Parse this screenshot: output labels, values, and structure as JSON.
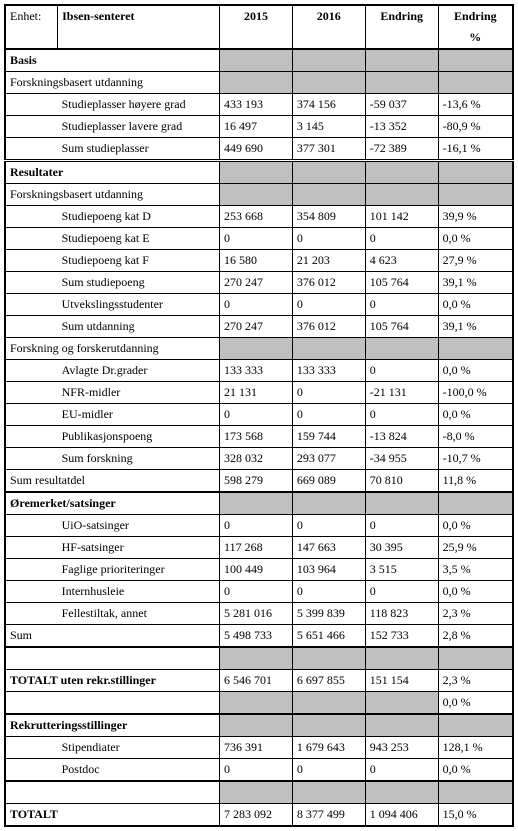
{
  "colors": {
    "shade": "#c0c0c0",
    "border": "#000000",
    "text": "#000000",
    "bg": "#ffffff"
  },
  "header": {
    "enhet_label": "Enhet:",
    "enhet_value": "Ibsen-senteret",
    "c2015": "2015",
    "c2016": "2016",
    "endring": "Endring",
    "endring_pct": "Endring",
    "pct_sub": "%"
  },
  "sec": {
    "basis": "Basis",
    "fbu1": "Forskningsbasert utdanning",
    "resultater": "Resultater",
    "fbu2": "Forskningsbasert utdanning",
    "fof": "Forskning og forskerutdanning",
    "sum_resultatdel": "Sum resultatdel",
    "oremerket": "Øremerket/satsinger",
    "sum": "Sum",
    "tot_uten": "TOTALT uten rekr.stillinger",
    "rekr": "Rekrutteringsstillinger",
    "totalt": "TOTALT"
  },
  "rows": {
    "sp_hoy": {
      "label": "Studieplasser høyere grad",
      "y15": "433 193",
      "y16": "374 156",
      "diff": "-59 037",
      "pct": "-13,6 %"
    },
    "sp_lav": {
      "label": "Studieplasser lavere grad",
      "y15": "16 497",
      "y16": "3 145",
      "diff": "-13 352",
      "pct": "-80,9 %"
    },
    "sp_sum": {
      "label": "Sum studieplasser",
      "y15": "449 690",
      "y16": "377 301",
      "diff": "-72 389",
      "pct": "-16,1 %"
    },
    "spD": {
      "label": "Studiepoeng kat D",
      "y15": "253 668",
      "y16": "354 809",
      "diff": "101 142",
      "pct": "39,9 %"
    },
    "spE": {
      "label": "Studiepoeng kat E",
      "y15": "0",
      "y16": "0",
      "diff": "0",
      "pct": "0,0 %"
    },
    "spF": {
      "label": "Studiepoeng kat F",
      "y15": "16 580",
      "y16": "21 203",
      "diff": "4 623",
      "pct": "27,9 %"
    },
    "sp_sum2": {
      "label": "Sum studiepoeng",
      "y15": "270 247",
      "y16": "376 012",
      "diff": "105 764",
      "pct": "39,1 %"
    },
    "utv": {
      "label": "Utvekslingsstudenter",
      "y15": "0",
      "y16": "0",
      "diff": "0",
      "pct": "0,0 %"
    },
    "sum_utd": {
      "label": "Sum utdanning",
      "y15": "270 247",
      "y16": "376 012",
      "diff": "105 764",
      "pct": "39,1 %"
    },
    "dr": {
      "label": "Avlagte Dr.grader",
      "y15": "133 333",
      "y16": "133 333",
      "diff": "0",
      "pct": "0,0 %"
    },
    "nfr": {
      "label": "NFR-midler",
      "y15": "21 131",
      "y16": "0",
      "diff": "-21 131",
      "pct": "-100,0 %"
    },
    "eu": {
      "label": "EU-midler",
      "y15": "0",
      "y16": "0",
      "diff": "0",
      "pct": "0,0 %"
    },
    "pub": {
      "label": "Publikasjonspoeng",
      "y15": "173 568",
      "y16": "159 744",
      "diff": "-13 824",
      "pct": "-8,0 %"
    },
    "sum_f": {
      "label": "Sum forskning",
      "y15": "328 032",
      "y16": "293 077",
      "diff": "-34 955",
      "pct": "-10,7 %"
    },
    "sum_res": {
      "y15": "598 279",
      "y16": "669 089",
      "diff": "70 810",
      "pct": "11,8 %"
    },
    "uio": {
      "label": "UiO-satsinger",
      "y15": "0",
      "y16": "0",
      "diff": "0",
      "pct": "0,0 %"
    },
    "hf": {
      "label": "HF-satsinger",
      "y15": "117 268",
      "y16": "147 663",
      "diff": "30 395",
      "pct": "25,9 %"
    },
    "fagl": {
      "label": "Faglige prioriteringer",
      "y15": "100 449",
      "y16": "103 964",
      "diff": "3 515",
      "pct": "3,5 %"
    },
    "intern": {
      "label": "Internhusleie",
      "y15": "0",
      "y16": "0",
      "diff": "0",
      "pct": "0,0 %"
    },
    "felles": {
      "label": "Fellestiltak, annet",
      "y15": "5 281 016",
      "y16": "5 399 839",
      "diff": "118 823",
      "pct": "2,3 %"
    },
    "sum_oer": {
      "y15": "5 498 733",
      "y16": "5 651 466",
      "diff": "152 733",
      "pct": "2,8 %"
    },
    "tot_uten": {
      "y15": "6 546 701",
      "y16": "6 697 855",
      "diff": "151 154",
      "pct": "2,3 %"
    },
    "zero_pct": {
      "pct": "0,0 %"
    },
    "stip": {
      "label": "Stipendiater",
      "y15": "736 391",
      "y16": "1 679 643",
      "diff": "943 253",
      "pct": "128,1 %"
    },
    "postdoc": {
      "label": "Postdoc",
      "y15": "0",
      "y16": "0",
      "diff": "0",
      "pct": "0,0 %"
    },
    "totalt": {
      "y15": "7 283 092",
      "y16": "8 377 499",
      "diff": "1 094 406",
      "pct": "15,0 %"
    }
  }
}
